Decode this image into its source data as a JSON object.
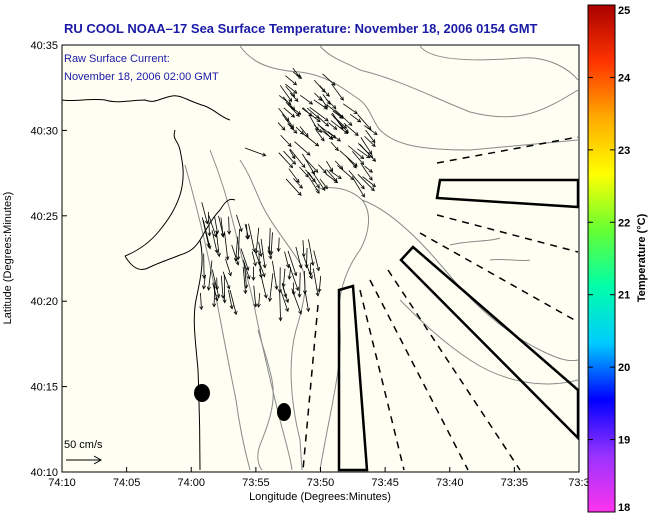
{
  "chart_data": {
    "type": "map-vector-field",
    "title": "RU COOL  NOAA–17  Sea Surface Temperature:  November 18, 2006 0154 GMT",
    "annotation_lines": [
      "Raw Surface Current:",
      "November 18, 2006 02:00 GMT"
    ],
    "xlabel": "Longitude (Degrees:Minutes)",
    "ylabel": "Latitude (Degrees:Minutes)",
    "x_ticks": [
      "74:10",
      "74:05",
      "74:00",
      "73:55",
      "73:50",
      "73:45",
      "73:40",
      "73:35",
      "73:3"
    ],
    "y_ticks": [
      "40:35",
      "40:30",
      "40:25",
      "40:20",
      "40:15",
      "40:10"
    ],
    "xlim": [
      -74.1667,
      -73.5
    ],
    "ylim": [
      40.1667,
      40.5833
    ],
    "scale_label": "50 cm/s",
    "colorbar": {
      "label": "Temperature (°C)",
      "range": [
        18,
        25
      ],
      "ticks": [
        "18",
        "19",
        "20",
        "21",
        "22",
        "23",
        "24",
        "25"
      ],
      "colors": [
        "#ff33ee",
        "#9933ff",
        "#0000ff",
        "#00ccff",
        "#00ffaa",
        "#66ff33",
        "#ffff00",
        "#ffaa00",
        "#ff3300",
        "#aa0000"
      ]
    },
    "background": "#fefef3"
  }
}
